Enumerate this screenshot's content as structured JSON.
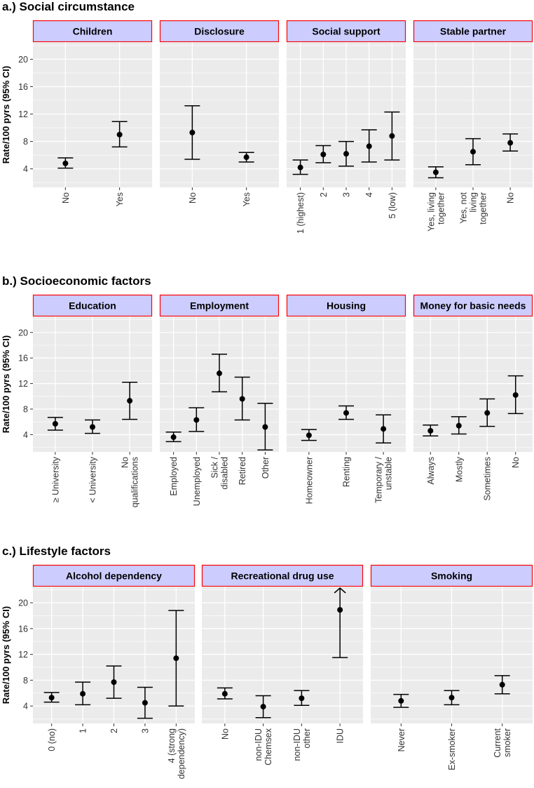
{
  "colors": {
    "panel_bg": "#ebebeb",
    "grid": "#ffffff",
    "strip_bg": "#ccccff",
    "strip_border": "#ff0000",
    "point": "#000000"
  },
  "chart_data": [
    {
      "type": "scatter",
      "section_title": "a.) Social circumstance",
      "ylabel": "Rate/100 pyrs (95% CI)",
      "ylim": [
        1.3,
        22.5
      ],
      "yticks": [
        4,
        8,
        12,
        16,
        20
      ],
      "panels": [
        {
          "title": "Children",
          "points": [
            {
              "label": "No",
              "est": 4.8,
              "lo": 4.1,
              "hi": 5.6
            },
            {
              "label": "Yes",
              "est": 9.0,
              "lo": 7.2,
              "hi": 10.9
            }
          ]
        },
        {
          "title": "Disclosure",
          "points": [
            {
              "label": "No",
              "est": 9.3,
              "lo": 5.4,
              "hi": 13.2
            },
            {
              "label": "Yes",
              "est": 5.7,
              "lo": 5.0,
              "hi": 6.4
            }
          ]
        },
        {
          "title": "Social support",
          "points": [
            {
              "label": "1 (highest)",
              "est": 4.2,
              "lo": 3.2,
              "hi": 5.3
            },
            {
              "label": "2",
              "est": 6.1,
              "lo": 4.9,
              "hi": 7.4
            },
            {
              "label": "3",
              "est": 6.2,
              "lo": 4.4,
              "hi": 8.0
            },
            {
              "label": "4",
              "est": 7.3,
              "lo": 5.0,
              "hi": 9.7
            },
            {
              "label": "5 (low)",
              "est": 8.8,
              "lo": 5.3,
              "hi": 12.3
            }
          ]
        },
        {
          "title": "Stable partner",
          "points": [
            {
              "label": "Yes, living\ntogether",
              "est": 3.5,
              "lo": 2.7,
              "hi": 4.3
            },
            {
              "label": "Yes, not\nliving\ntogether",
              "est": 6.5,
              "lo": 4.6,
              "hi": 8.4
            },
            {
              "label": "No",
              "est": 7.8,
              "lo": 6.6,
              "hi": 9.1
            }
          ]
        }
      ]
    },
    {
      "type": "scatter",
      "section_title": "b.) Socioeconomic factors",
      "ylabel": "Rate/100 pyrs (95% CI)",
      "ylim": [
        1.3,
        22.5
      ],
      "yticks": [
        4,
        8,
        12,
        16,
        20
      ],
      "panels": [
        {
          "title": "Education",
          "points": [
            {
              "label": "≥ University",
              "est": 5.7,
              "lo": 4.7,
              "hi": 6.7
            },
            {
              "label": "< University",
              "est": 5.2,
              "lo": 4.2,
              "hi": 6.3
            },
            {
              "label": "No\nqualifications",
              "est": 9.3,
              "lo": 6.4,
              "hi": 12.2
            }
          ]
        },
        {
          "title": "Employment",
          "points": [
            {
              "label": "Employed",
              "est": 3.6,
              "lo": 2.9,
              "hi": 4.4
            },
            {
              "label": "Unemployed",
              "est": 6.3,
              "lo": 4.5,
              "hi": 8.2
            },
            {
              "label": "Sick /\ndisabled",
              "est": 13.6,
              "lo": 10.7,
              "hi": 16.6
            },
            {
              "label": "Retired",
              "est": 9.6,
              "lo": 6.3,
              "hi": 13.0
            },
            {
              "label": "Other",
              "est": 5.2,
              "lo": 1.6,
              "hi": 8.9
            }
          ]
        },
        {
          "title": "Housing",
          "points": [
            {
              "label": "Homeowner",
              "est": 3.9,
              "lo": 3.1,
              "hi": 4.8
            },
            {
              "label": "Renting",
              "est": 7.4,
              "lo": 6.4,
              "hi": 8.5
            },
            {
              "label": "Temporary /\nunstable",
              "est": 4.9,
              "lo": 2.7,
              "hi": 7.1
            }
          ]
        },
        {
          "title": "Money for basic needs",
          "points": [
            {
              "label": "Always",
              "est": 4.6,
              "lo": 3.8,
              "hi": 5.5
            },
            {
              "label": "Mostly",
              "est": 5.4,
              "lo": 4.1,
              "hi": 6.8
            },
            {
              "label": "Sometimes",
              "est": 7.4,
              "lo": 5.3,
              "hi": 9.6
            },
            {
              "label": "No",
              "est": 10.2,
              "lo": 7.3,
              "hi": 13.2
            }
          ]
        }
      ]
    },
    {
      "type": "scatter",
      "section_title": "c.) Lifestyle factors",
      "ylabel": "Rate/100 pyrs (95% CI)",
      "ylim": [
        1.3,
        22.5
      ],
      "yticks": [
        4,
        8,
        12,
        16,
        20
      ],
      "panels": [
        {
          "title": "Alcohol dependency",
          "points": [
            {
              "label": "0 (no)",
              "est": 5.3,
              "lo": 4.6,
              "hi": 6.1
            },
            {
              "label": "1",
              "est": 5.9,
              "lo": 4.2,
              "hi": 7.7
            },
            {
              "label": "2",
              "est": 7.7,
              "lo": 5.2,
              "hi": 10.2
            },
            {
              "label": "3",
              "est": 4.5,
              "lo": 2.1,
              "hi": 6.9
            },
            {
              "label": "4 (strong\ndependency)",
              "est": 11.4,
              "lo": 4.0,
              "hi": 18.8
            }
          ]
        },
        {
          "title": "Recreational drug use",
          "points": [
            {
              "label": "No",
              "est": 5.9,
              "lo": 5.1,
              "hi": 6.8
            },
            {
              "label": "non-IDU\nChemsex",
              "est": 3.9,
              "lo": 2.2,
              "hi": 5.6
            },
            {
              "label": "non-IDU\nother",
              "est": 5.2,
              "lo": 4.1,
              "hi": 6.4
            },
            {
              "label": "IDU",
              "est": 18.9,
              "lo": 11.5,
              "hi": 22.5,
              "arrow": true
            }
          ]
        },
        {
          "title": "Smoking",
          "points": [
            {
              "label": "Never",
              "est": 4.8,
              "lo": 3.8,
              "hi": 5.8
            },
            {
              "label": "Ex-smoker",
              "est": 5.3,
              "lo": 4.2,
              "hi": 6.4
            },
            {
              "label": "Current\nsmoker",
              "est": 7.3,
              "lo": 5.9,
              "hi": 8.7
            }
          ]
        }
      ]
    }
  ]
}
